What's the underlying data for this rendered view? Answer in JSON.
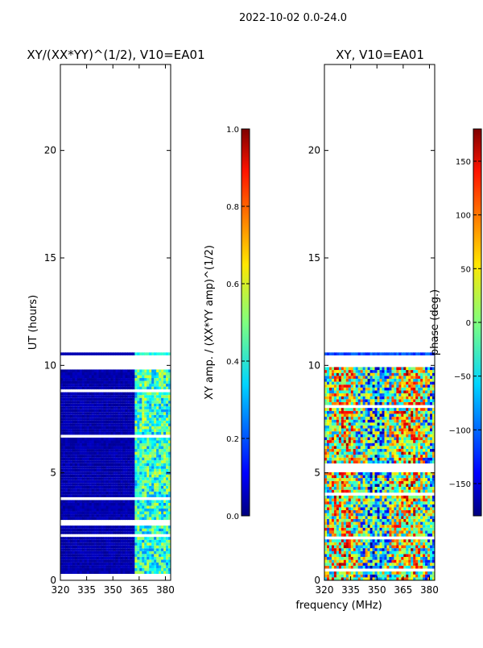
{
  "suptitle": "2022-10-02 0.0-24.0",
  "xlabel_shared": "frequency (MHz)",
  "chart_data": [
    {
      "type": "heatmap",
      "title": "XY/(XX*YY)^(1/2), V10=EA01",
      "xlabel": "frequency (MHz)",
      "ylabel": "UT (hours)",
      "xlim": [
        320,
        383
      ],
      "ylim": [
        0,
        24
      ],
      "xticks": [
        320,
        335,
        350,
        365,
        380
      ],
      "yticks": [
        0,
        5,
        10,
        15,
        20
      ],
      "data_extent_hours": [
        0.3,
        10.6
      ],
      "gap_hours": [
        9.8,
        10.5
      ],
      "colorbar": {
        "label": "XY amp. / (XX*YY amp)^(1/2)",
        "range": [
          0.0,
          1.0
        ],
        "ticks": [
          "0.0",
          "0.2",
          "0.4",
          "0.6",
          "0.8",
          "1.0"
        ],
        "colormap": "jet"
      },
      "description_values": {
        "low_band_MHz": [
          320,
          362
        ],
        "low_band_value": 0.05,
        "high_band_MHz": [
          362,
          383
        ],
        "high_band_value_range": [
          0.3,
          0.55
        ]
      }
    },
    {
      "type": "heatmap",
      "title": "XY, V10=EA01",
      "xlabel": "frequency (MHz)",
      "ylabel": "",
      "xlim": [
        320,
        383
      ],
      "ylim": [
        0,
        24
      ],
      "xticks": [
        320,
        335,
        350,
        365,
        380
      ],
      "yticks": [
        0,
        5,
        10,
        15,
        20
      ],
      "data_extent_hours": [
        0.0,
        10.6
      ],
      "gap_hours": [
        9.8,
        10.5
      ],
      "colorbar": {
        "label": "phase (deg.)",
        "range": [
          -180,
          180
        ],
        "ticks": [
          "−150",
          "−100",
          "−50",
          "0",
          "50",
          "100",
          "150"
        ],
        "tick_values": [
          -150,
          -100,
          -50,
          0,
          50,
          100,
          150
        ],
        "colormap": "jet"
      }
    }
  ],
  "colors": {
    "jet": [
      "#00007f",
      "#0000ff",
      "#007fff",
      "#00ffff",
      "#7fff7f",
      "#ffff00",
      "#ff7f00",
      "#ff0000",
      "#7f0000"
    ]
  }
}
